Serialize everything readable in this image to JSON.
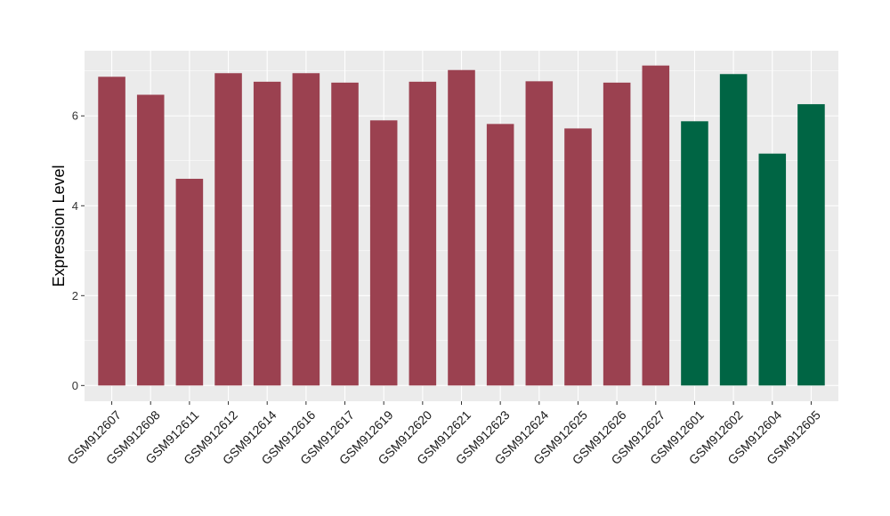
{
  "chart_data": {
    "type": "bar",
    "title": "",
    "xlabel": "",
    "ylabel": "Expression Level",
    "ylim": [
      -0.35,
      7.45
    ],
    "yticks": [
      0,
      2,
      4,
      6
    ],
    "grid": true,
    "legend": "none",
    "categories": [
      "GSM912607",
      "GSM912608",
      "GSM912611",
      "GSM912612",
      "GSM912614",
      "GSM912616",
      "GSM912617",
      "GSM912619",
      "GSM912620",
      "GSM912621",
      "GSM912623",
      "GSM912624",
      "GSM912625",
      "GSM912626",
      "GSM912627",
      "GSM912601",
      "GSM912602",
      "GSM912604",
      "GSM912605"
    ],
    "values": [
      6.87,
      6.47,
      4.6,
      6.95,
      6.76,
      6.95,
      6.74,
      5.9,
      6.76,
      7.02,
      5.82,
      6.77,
      5.72,
      6.74,
      7.12,
      5.88,
      6.93,
      5.16,
      6.26
    ],
    "groups": [
      0,
      0,
      0,
      0,
      0,
      0,
      0,
      0,
      0,
      0,
      0,
      0,
      0,
      0,
      0,
      1,
      1,
      1,
      1
    ],
    "colors": [
      "#9b4150",
      "#006544"
    ]
  },
  "style": {
    "panel_bg": "#ebebeb",
    "grid_color": "#ffffff"
  }
}
